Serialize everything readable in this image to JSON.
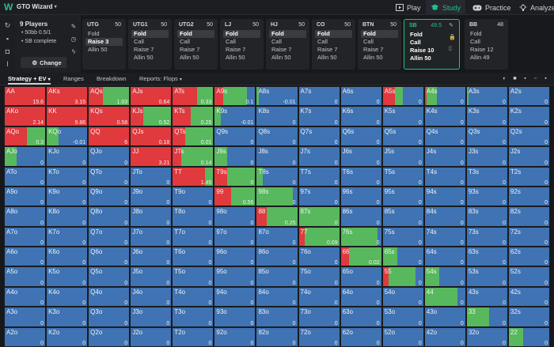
{
  "app": {
    "brand": "GTO Wizard"
  },
  "nav": {
    "play": "Play",
    "study": "Study",
    "practice": "Practice",
    "analyze": "Analyze"
  },
  "info": {
    "players": "9 Players",
    "stakes": "50bb 0.5/1",
    "status": "SB complete",
    "change_label": "Change"
  },
  "seats": [
    {
      "name": "UTG",
      "stack": "50",
      "actions": [
        "Fold",
        "Raise 3",
        "Allin 50"
      ],
      "selected": 1
    },
    {
      "name": "UTG1",
      "stack": "50",
      "actions": [
        "Fold",
        "Call",
        "Raise 7",
        "Allin 50"
      ],
      "selected": 0
    },
    {
      "name": "UTG2",
      "stack": "50",
      "actions": [
        "Fold",
        "Call",
        "Raise 7",
        "Allin 50"
      ],
      "selected": 0
    },
    {
      "name": "LJ",
      "stack": "50",
      "actions": [
        "Fold",
        "Call",
        "Raise 7",
        "Allin 50"
      ],
      "selected": 0
    },
    {
      "name": "HJ",
      "stack": "50",
      "actions": [
        "Fold",
        "Call",
        "Raise 7",
        "Allin 50"
      ],
      "selected": 0
    },
    {
      "name": "CO",
      "stack": "50",
      "actions": [
        "Fold",
        "Call",
        "Raise 7",
        "Allin 50"
      ],
      "selected": 0
    },
    {
      "name": "BTN",
      "stack": "50",
      "actions": [
        "Fold",
        "Call",
        "Raise 7",
        "Allin 50"
      ],
      "selected": 0
    },
    {
      "name": "SB",
      "stack": "49.5",
      "actions": [
        "Fold",
        "Call",
        "Raise 10",
        "Allin 50"
      ],
      "selected": -1
    },
    {
      "name": "BB",
      "stack": "48",
      "actions": [
        "Fold",
        "Call",
        "Raise 12",
        "Allin 49"
      ],
      "selected": -1
    }
  ],
  "tabs": {
    "strategy": "Strategy + EV",
    "ranges": "Ranges",
    "breakdown": "Breakdown",
    "reports": "Reports: Flops"
  },
  "colors": {
    "raise": "#e0393e",
    "call": "#58b85d",
    "fold": "#3f73b3",
    "accent": "#22c08a",
    "bg": "#17181b"
  },
  "grid": {
    "rows": [
      [
        {
          "h": "AA",
          "r": 1.0,
          "c": 0,
          "ev": "15.6"
        },
        {
          "h": "AKs",
          "r": 1.0,
          "c": 0,
          "ev": "3.15"
        },
        {
          "h": "AQs",
          "r": 0.35,
          "c": 0.65,
          "ev": "1.03"
        },
        {
          "h": "AJs",
          "r": 1.0,
          "c": 0,
          "ev": "0.64"
        },
        {
          "h": "ATs",
          "r": 0.6,
          "c": 0.4,
          "ev": "0.33"
        },
        {
          "h": "A9s",
          "r": 0.2,
          "c": 0.6,
          "ev": "0.1"
        },
        {
          "h": "A8s",
          "r": 0,
          "c": 0.05,
          "ev": "-0.01"
        },
        {
          "h": "A7s",
          "r": 0,
          "c": 0,
          "ev": "0"
        },
        {
          "h": "A6s",
          "r": 0,
          "c": 0,
          "ev": "0"
        },
        {
          "h": "A5s",
          "r": 0.3,
          "c": 0.2,
          "ev": "0"
        },
        {
          "h": "A4s",
          "r": 0.05,
          "c": 0.25,
          "ev": "0"
        },
        {
          "h": "A3s",
          "r": 0,
          "c": 0.05,
          "ev": "0"
        },
        {
          "h": "A2s",
          "r": 0,
          "c": 0,
          "ev": "0"
        }
      ],
      [
        {
          "h": "AKo",
          "r": 1.0,
          "c": 0,
          "ev": "2.14"
        },
        {
          "h": "KK",
          "r": 1.0,
          "c": 0,
          "ev": "9.86"
        },
        {
          "h": "KQs",
          "r": 1.0,
          "c": 0,
          "ev": "0.58"
        },
        {
          "h": "KJs",
          "r": 0.3,
          "c": 0.7,
          "ev": "0.52"
        },
        {
          "h": "KTs",
          "r": 0.45,
          "c": 0.55,
          "ev": "0.25"
        },
        {
          "h": "K9s",
          "r": 0,
          "c": 0.15,
          "ev": "-0.01"
        },
        {
          "h": "K8s",
          "r": 0,
          "c": 0,
          "ev": "0"
        },
        {
          "h": "K7s",
          "r": 0,
          "c": 0,
          "ev": "0"
        },
        {
          "h": "K6s",
          "r": 0,
          "c": 0,
          "ev": "0"
        },
        {
          "h": "K5s",
          "r": 0,
          "c": 0,
          "ev": "0"
        },
        {
          "h": "K4s",
          "r": 0,
          "c": 0,
          "ev": "0"
        },
        {
          "h": "K3s",
          "r": 0,
          "c": 0,
          "ev": "0"
        },
        {
          "h": "K2s",
          "r": 0,
          "c": 0,
          "ev": "0"
        }
      ],
      [
        {
          "h": "AQo",
          "r": 0.55,
          "c": 0.45,
          "ev": "0.3"
        },
        {
          "h": "KQo",
          "r": 0,
          "c": 0.3,
          "ev": "-0.01"
        },
        {
          "h": "QQ",
          "r": 1.0,
          "c": 0,
          "ev": "6"
        },
        {
          "h": "QJs",
          "r": 1.0,
          "c": 0,
          "ev": "0.18"
        },
        {
          "h": "QTs",
          "r": 0.3,
          "c": 0.7,
          "ev": "0.01"
        },
        {
          "h": "Q9s",
          "r": 0,
          "c": 0,
          "ev": "0"
        },
        {
          "h": "Q8s",
          "r": 0,
          "c": 0,
          "ev": "0"
        },
        {
          "h": "Q7s",
          "r": 0,
          "c": 0,
          "ev": "0"
        },
        {
          "h": "Q6s",
          "r": 0,
          "c": 0,
          "ev": "0"
        },
        {
          "h": "Q5s",
          "r": 0,
          "c": 0,
          "ev": "0"
        },
        {
          "h": "Q4s",
          "r": 0,
          "c": 0,
          "ev": "0"
        },
        {
          "h": "Q3s",
          "r": 0,
          "c": 0,
          "ev": "0"
        },
        {
          "h": "Q2s",
          "r": 0,
          "c": 0,
          "ev": "0"
        }
      ],
      [
        {
          "h": "AJo",
          "r": 0,
          "c": 0.3,
          "ev": "0"
        },
        {
          "h": "KJo",
          "r": 0,
          "c": 0,
          "ev": "0"
        },
        {
          "h": "QJo",
          "r": 0,
          "c": 0,
          "ev": "0"
        },
        {
          "h": "JJ",
          "r": 1.0,
          "c": 0,
          "ev": "3.21"
        },
        {
          "h": "JTs",
          "r": 0.2,
          "c": 0.8,
          "ev": "0.14"
        },
        {
          "h": "J9s",
          "r": 0,
          "c": 0.3,
          "ev": "0"
        },
        {
          "h": "J8s",
          "r": 0,
          "c": 0,
          "ev": "0"
        },
        {
          "h": "J7s",
          "r": 0,
          "c": 0,
          "ev": "0"
        },
        {
          "h": "J6s",
          "r": 0,
          "c": 0,
          "ev": "0"
        },
        {
          "h": "J5s",
          "r": 0,
          "c": 0,
          "ev": "0"
        },
        {
          "h": "J4s",
          "r": 0,
          "c": 0,
          "ev": "0"
        },
        {
          "h": "J3s",
          "r": 0,
          "c": 0,
          "ev": "0"
        },
        {
          "h": "J2s",
          "r": 0,
          "c": 0,
          "ev": "0"
        }
      ],
      [
        {
          "h": "ATo",
          "r": 0,
          "c": 0,
          "ev": "0"
        },
        {
          "h": "KTo",
          "r": 0,
          "c": 0,
          "ev": "0"
        },
        {
          "h": "QTo",
          "r": 0,
          "c": 0,
          "ev": "0"
        },
        {
          "h": "JTo",
          "r": 0,
          "c": 0,
          "ev": "0"
        },
        {
          "h": "TT",
          "r": 0.8,
          "c": 0.2,
          "ev": "1.45"
        },
        {
          "h": "T9s",
          "r": 0.3,
          "c": 0.7,
          "ev": "0"
        },
        {
          "h": "T8s",
          "r": 0,
          "c": 0.15,
          "ev": "0"
        },
        {
          "h": "T7s",
          "r": 0,
          "c": 0,
          "ev": "0"
        },
        {
          "h": "T6s",
          "r": 0,
          "c": 0,
          "ev": "0"
        },
        {
          "h": "T5s",
          "r": 0,
          "c": 0,
          "ev": "0"
        },
        {
          "h": "T4s",
          "r": 0,
          "c": 0,
          "ev": "0"
        },
        {
          "h": "T3s",
          "r": 0,
          "c": 0,
          "ev": "0"
        },
        {
          "h": "T2s",
          "r": 0,
          "c": 0,
          "ev": "0"
        }
      ],
      [
        {
          "h": "A9o",
          "r": 0,
          "c": 0,
          "ev": "0"
        },
        {
          "h": "K9o",
          "r": 0,
          "c": 0,
          "ev": "0"
        },
        {
          "h": "Q9o",
          "r": 0,
          "c": 0,
          "ev": "0"
        },
        {
          "h": "J9o",
          "r": 0,
          "c": 0,
          "ev": "0"
        },
        {
          "h": "T9o",
          "r": 0,
          "c": 0,
          "ev": "0"
        },
        {
          "h": "99",
          "r": 0.4,
          "c": 0.6,
          "ev": "0.56"
        },
        {
          "h": "98s",
          "r": 0,
          "c": 0.9,
          "ev": "0"
        },
        {
          "h": "97s",
          "r": 0,
          "c": 0,
          "ev": "0"
        },
        {
          "h": "96s",
          "r": 0,
          "c": 0,
          "ev": "0"
        },
        {
          "h": "95s",
          "r": 0,
          "c": 0,
          "ev": "0"
        },
        {
          "h": "94s",
          "r": 0,
          "c": 0,
          "ev": "0"
        },
        {
          "h": "93s",
          "r": 0,
          "c": 0,
          "ev": "0"
        },
        {
          "h": "92s",
          "r": 0,
          "c": 0,
          "ev": "0"
        }
      ],
      [
        {
          "h": "A8o",
          "r": 0,
          "c": 0,
          "ev": "0"
        },
        {
          "h": "K8o",
          "r": 0,
          "c": 0,
          "ev": "0"
        },
        {
          "h": "Q8o",
          "r": 0,
          "c": 0,
          "ev": "0"
        },
        {
          "h": "J8o",
          "r": 0,
          "c": 0,
          "ev": "0"
        },
        {
          "h": "T8o",
          "r": 0,
          "c": 0,
          "ev": "0"
        },
        {
          "h": "98o",
          "r": 0,
          "c": 0,
          "ev": "0"
        },
        {
          "h": "88",
          "r": 0.25,
          "c": 0.75,
          "ev": "0.25"
        },
        {
          "h": "87s",
          "r": 0,
          "c": 1.0,
          "ev": "0"
        },
        {
          "h": "86s",
          "r": 0,
          "c": 0,
          "ev": "0"
        },
        {
          "h": "85s",
          "r": 0,
          "c": 0,
          "ev": "0"
        },
        {
          "h": "84s",
          "r": 0,
          "c": 0,
          "ev": "0"
        },
        {
          "h": "83s",
          "r": 0,
          "c": 0,
          "ev": "0"
        },
        {
          "h": "82s",
          "r": 0,
          "c": 0,
          "ev": "0"
        }
      ],
      [
        {
          "h": "A7o",
          "r": 0,
          "c": 0,
          "ev": "0"
        },
        {
          "h": "K7o",
          "r": 0,
          "c": 0,
          "ev": "0"
        },
        {
          "h": "Q7o",
          "r": 0,
          "c": 0,
          "ev": "0"
        },
        {
          "h": "J7o",
          "r": 0,
          "c": 0,
          "ev": "0"
        },
        {
          "h": "T7o",
          "r": 0,
          "c": 0,
          "ev": "0"
        },
        {
          "h": "97o",
          "r": 0,
          "c": 0,
          "ev": "0"
        },
        {
          "h": "87o",
          "r": 0,
          "c": 0,
          "ev": "0"
        },
        {
          "h": "77",
          "r": 0.15,
          "c": 0.85,
          "ev": "0.09"
        },
        {
          "h": "76s",
          "r": 0,
          "c": 0.9,
          "ev": "0"
        },
        {
          "h": "75s",
          "r": 0,
          "c": 0,
          "ev": "0"
        },
        {
          "h": "74s",
          "r": 0,
          "c": 0,
          "ev": "0"
        },
        {
          "h": "73s",
          "r": 0,
          "c": 0,
          "ev": "0"
        },
        {
          "h": "72s",
          "r": 0,
          "c": 0,
          "ev": "0"
        }
      ],
      [
        {
          "h": "A6o",
          "r": 0,
          "c": 0,
          "ev": "0"
        },
        {
          "h": "K6o",
          "r": 0,
          "c": 0,
          "ev": "0"
        },
        {
          "h": "Q6o",
          "r": 0,
          "c": 0,
          "ev": "0"
        },
        {
          "h": "J6o",
          "r": 0,
          "c": 0,
          "ev": "0"
        },
        {
          "h": "T6o",
          "r": 0,
          "c": 0,
          "ev": "0"
        },
        {
          "h": "96o",
          "r": 0,
          "c": 0,
          "ev": "0"
        },
        {
          "h": "86o",
          "r": 0,
          "c": 0,
          "ev": "0"
        },
        {
          "h": "76o",
          "r": 0,
          "c": 0,
          "ev": "0"
        },
        {
          "h": "66",
          "r": 0.2,
          "c": 0.8,
          "ev": "0.02"
        },
        {
          "h": "65s",
          "r": 0,
          "c": 0.35,
          "ev": "0"
        },
        {
          "h": "64s",
          "r": 0,
          "c": 0,
          "ev": "0"
        },
        {
          "h": "63s",
          "r": 0,
          "c": 0,
          "ev": "0"
        },
        {
          "h": "62s",
          "r": 0,
          "c": 0,
          "ev": "0"
        }
      ],
      [
        {
          "h": "A5o",
          "r": 0,
          "c": 0,
          "ev": "0"
        },
        {
          "h": "K5o",
          "r": 0,
          "c": 0,
          "ev": "0"
        },
        {
          "h": "Q5o",
          "r": 0,
          "c": 0,
          "ev": "0"
        },
        {
          "h": "J5o",
          "r": 0,
          "c": 0,
          "ev": "0"
        },
        {
          "h": "T5o",
          "r": 0,
          "c": 0,
          "ev": "0"
        },
        {
          "h": "95o",
          "r": 0,
          "c": 0,
          "ev": "0"
        },
        {
          "h": "85o",
          "r": 0,
          "c": 0,
          "ev": "0"
        },
        {
          "h": "75o",
          "r": 0,
          "c": 0,
          "ev": "0"
        },
        {
          "h": "65o",
          "r": 0,
          "c": 0,
          "ev": "0"
        },
        {
          "h": "55",
          "r": 0.15,
          "c": 0.65,
          "ev": "0"
        },
        {
          "h": "54s",
          "r": 0,
          "c": 0.35,
          "ev": "0"
        },
        {
          "h": "53s",
          "r": 0,
          "c": 0,
          "ev": "0"
        },
        {
          "h": "52s",
          "r": 0,
          "c": 0,
          "ev": "0"
        }
      ],
      [
        {
          "h": "A4o",
          "r": 0,
          "c": 0,
          "ev": "0"
        },
        {
          "h": "K4o",
          "r": 0,
          "c": 0,
          "ev": "0"
        },
        {
          "h": "Q4o",
          "r": 0,
          "c": 0,
          "ev": "0"
        },
        {
          "h": "J4o",
          "r": 0,
          "c": 0,
          "ev": "0"
        },
        {
          "h": "T4o",
          "r": 0,
          "c": 0,
          "ev": "0"
        },
        {
          "h": "94o",
          "r": 0,
          "c": 0,
          "ev": "0"
        },
        {
          "h": "84o",
          "r": 0,
          "c": 0,
          "ev": "0"
        },
        {
          "h": "74o",
          "r": 0,
          "c": 0,
          "ev": "0"
        },
        {
          "h": "64o",
          "r": 0,
          "c": 0,
          "ev": "0"
        },
        {
          "h": "54o",
          "r": 0,
          "c": 0,
          "ev": "0"
        },
        {
          "h": "44",
          "r": 0,
          "c": 0.8,
          "ev": "0"
        },
        {
          "h": "43s",
          "r": 0,
          "c": 0,
          "ev": "0"
        },
        {
          "h": "42s",
          "r": 0,
          "c": 0,
          "ev": "0"
        }
      ],
      [
        {
          "h": "A3o",
          "r": 0,
          "c": 0,
          "ev": "0"
        },
        {
          "h": "K3o",
          "r": 0,
          "c": 0,
          "ev": "0"
        },
        {
          "h": "Q3o",
          "r": 0,
          "c": 0,
          "ev": "0"
        },
        {
          "h": "J3o",
          "r": 0,
          "c": 0,
          "ev": "0"
        },
        {
          "h": "T3o",
          "r": 0,
          "c": 0,
          "ev": "0"
        },
        {
          "h": "93o",
          "r": 0,
          "c": 0,
          "ev": "0"
        },
        {
          "h": "83o",
          "r": 0,
          "c": 0,
          "ev": "0"
        },
        {
          "h": "73o",
          "r": 0,
          "c": 0,
          "ev": "0"
        },
        {
          "h": "63o",
          "r": 0,
          "c": 0,
          "ev": "0"
        },
        {
          "h": "53o",
          "r": 0,
          "c": 0,
          "ev": "0"
        },
        {
          "h": "43o",
          "r": 0,
          "c": 0,
          "ev": "0"
        },
        {
          "h": "33",
          "r": 0,
          "c": 0.55,
          "ev": "0"
        },
        {
          "h": "32s",
          "r": 0,
          "c": 0,
          "ev": "0"
        }
      ],
      [
        {
          "h": "A2o",
          "r": 0,
          "c": 0,
          "ev": "0"
        },
        {
          "h": "K2o",
          "r": 0,
          "c": 0,
          "ev": "0"
        },
        {
          "h": "Q2o",
          "r": 0,
          "c": 0,
          "ev": "0"
        },
        {
          "h": "J2o",
          "r": 0,
          "c": 0,
          "ev": "0"
        },
        {
          "h": "T2o",
          "r": 0,
          "c": 0,
          "ev": "0"
        },
        {
          "h": "92o",
          "r": 0,
          "c": 0,
          "ev": "0"
        },
        {
          "h": "82o",
          "r": 0,
          "c": 0,
          "ev": "0"
        },
        {
          "h": "72o",
          "r": 0,
          "c": 0,
          "ev": "0"
        },
        {
          "h": "62o",
          "r": 0,
          "c": 0,
          "ev": "0"
        },
        {
          "h": "52o",
          "r": 0,
          "c": 0,
          "ev": "0"
        },
        {
          "h": "42o",
          "r": 0,
          "c": 0,
          "ev": "0"
        },
        {
          "h": "32o",
          "r": 0,
          "c": 0,
          "ev": "0"
        },
        {
          "h": "22",
          "r": 0,
          "c": 0.35,
          "ev": "0"
        }
      ]
    ]
  }
}
